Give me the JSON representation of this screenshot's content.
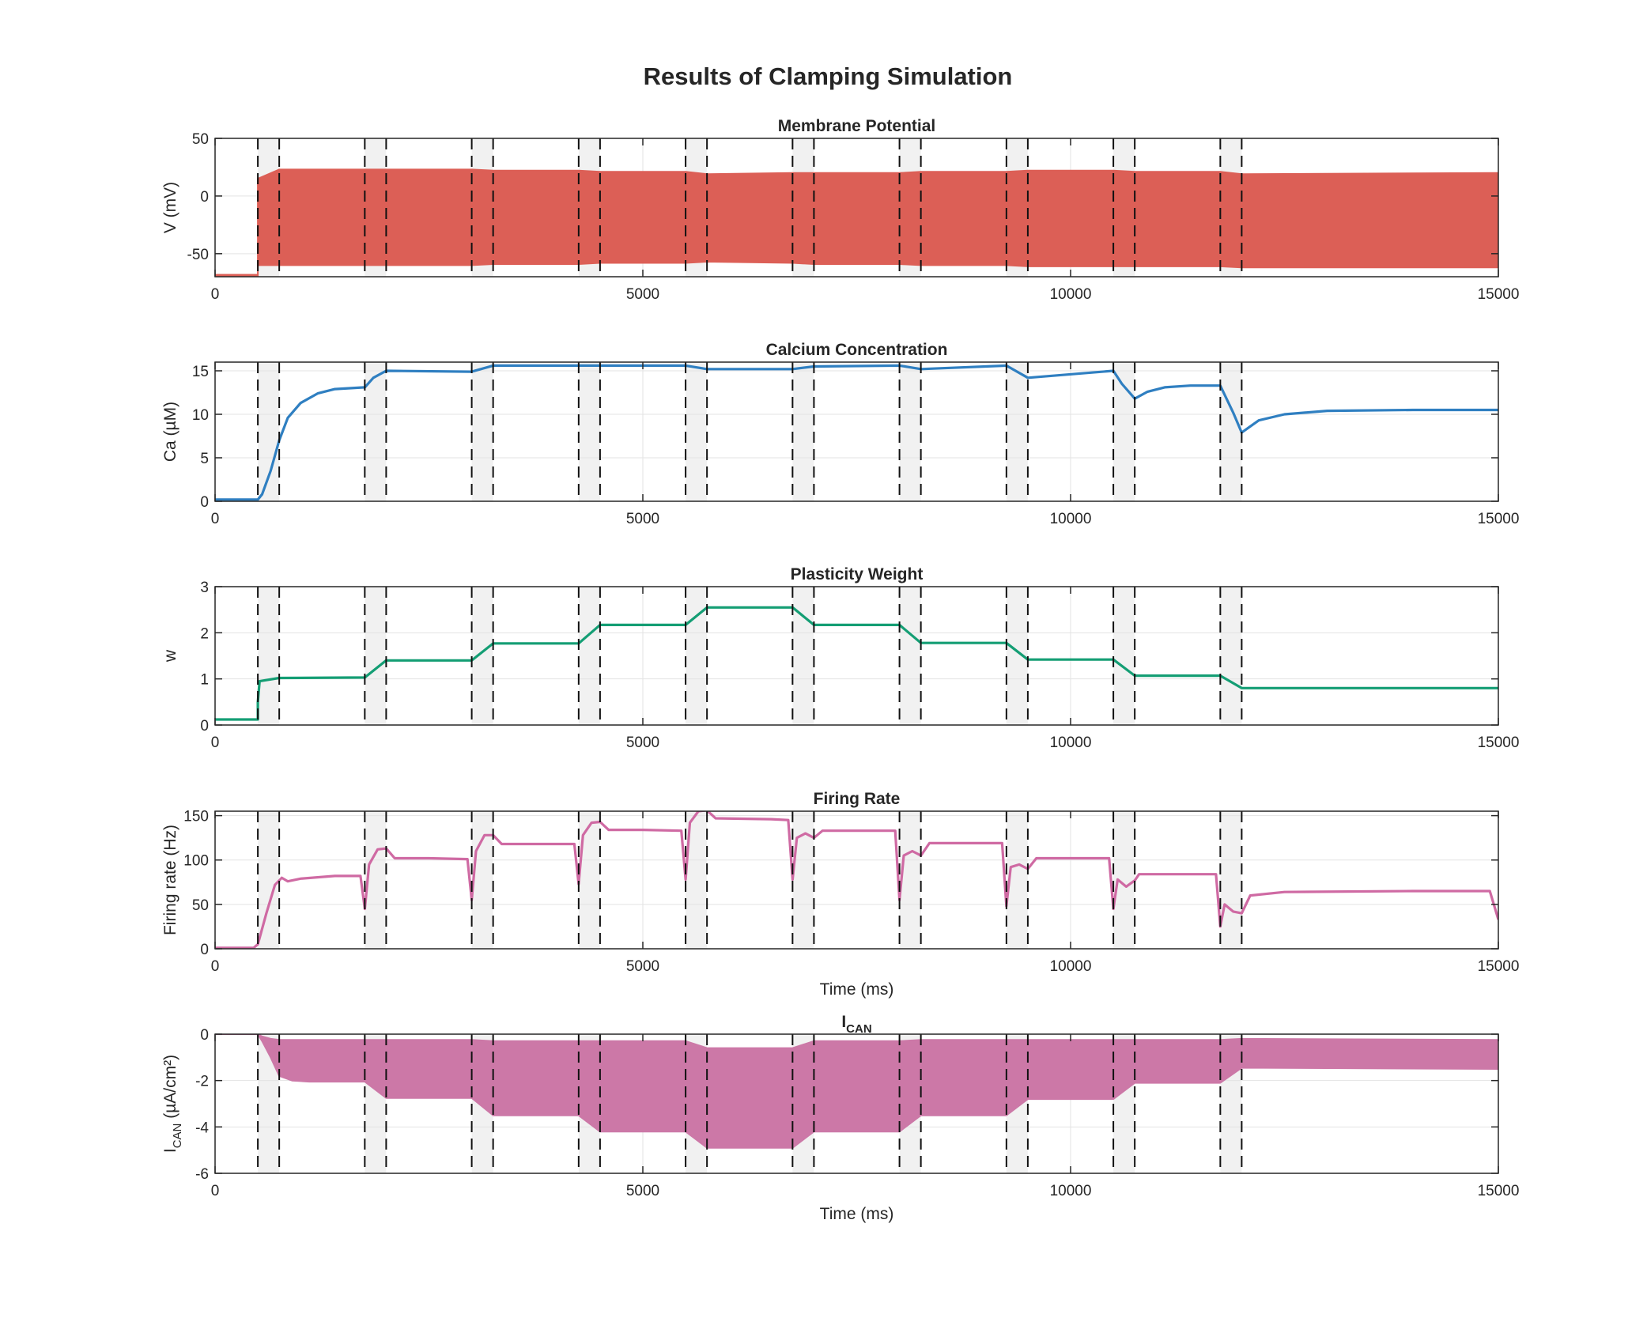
{
  "figure": {
    "title": "Results of Clamping Simulation"
  },
  "colors": {
    "V": "#dc5f56",
    "Ca": "#2f7fc1",
    "w": "#149e74",
    "rate": "#cf6aa3",
    "ican": "#cc78a7",
    "shade": "#ececec",
    "grid": "#e3e3e3",
    "axis": "#262626"
  },
  "chart_data": [
    {
      "type": "area",
      "title": "Membrane Potential",
      "xlabel": "",
      "ylabel": "V (mV)",
      "xlim": [
        0,
        15000
      ],
      "ylim": [
        -70,
        50
      ],
      "xticks": [
        0,
        5000,
        10000,
        15000
      ],
      "yticks": [
        -50,
        0,
        50
      ],
      "grid": true,
      "clamp_lines": [
        500,
        750,
        1750,
        2000,
        3000,
        3250,
        4250,
        4500,
        5500,
        5750,
        6750,
        7000,
        8000,
        8250,
        9250,
        9500,
        10500,
        10750,
        11750,
        12000
      ],
      "series": [
        {
          "x": [
            0,
            500,
            500,
            750,
            1750,
            2000,
            3000,
            3250,
            4250,
            4500,
            5500,
            5750,
            6750,
            7000,
            8000,
            8250,
            9250,
            9500,
            10500,
            10750,
            11750,
            12000,
            15000
          ],
          "upper": [
            -70,
            -70,
            15,
            23,
            23,
            23,
            23,
            22,
            22,
            21,
            21,
            19,
            20,
            20,
            20,
            21,
            21,
            22,
            22,
            21,
            21,
            19,
            20
          ],
          "lower": [
            -70,
            -70,
            -60,
            -60,
            -60,
            -60,
            -60,
            -59,
            -59,
            -58,
            -58,
            -57,
            -58,
            -59,
            -59,
            -60,
            -60,
            -61,
            -61,
            -61,
            -61,
            -62,
            -62
          ]
        }
      ]
    },
    {
      "type": "line",
      "title": "Calcium Concentration",
      "xlabel": "",
      "ylabel": "Ca (µM)",
      "xlim": [
        0,
        15000
      ],
      "ylim": [
        0,
        16
      ],
      "xticks": [
        0,
        5000,
        10000,
        15000
      ],
      "yticks": [
        0,
        5,
        10,
        15
      ],
      "grid": true,
      "clamp_lines": [
        500,
        750,
        1750,
        2000,
        3000,
        3250,
        4250,
        4500,
        5500,
        5750,
        6750,
        7000,
        8000,
        8250,
        9250,
        9500,
        10500,
        10750,
        11750,
        12000
      ],
      "series": [
        {
          "x": [
            0,
            500,
            550,
            650,
            750,
            850,
            1000,
            1200,
            1400,
            1750,
            1850,
            2000,
            3000,
            3250,
            4250,
            4500,
            5500,
            5750,
            6750,
            7000,
            8000,
            8250,
            9250,
            9500,
            10500,
            10600,
            10750,
            10900,
            11100,
            11400,
            11750,
            11900,
            12000,
            12200,
            12500,
            13000,
            14000,
            15000
          ],
          "y": [
            0.2,
            0.2,
            0.8,
            3.5,
            7.0,
            9.6,
            11.3,
            12.4,
            12.9,
            13.1,
            14.2,
            15.0,
            14.9,
            15.6,
            15.6,
            15.6,
            15.6,
            15.2,
            15.2,
            15.5,
            15.6,
            15.2,
            15.6,
            14.2,
            15.0,
            13.5,
            11.8,
            12.6,
            13.1,
            13.3,
            13.3,
            10.2,
            7.9,
            9.3,
            10.0,
            10.4,
            10.5,
            10.5
          ]
        }
      ]
    },
    {
      "type": "line",
      "title": "Plasticity Weight",
      "xlabel": "",
      "ylabel": "w",
      "xlim": [
        0,
        15000
      ],
      "ylim": [
        0,
        3
      ],
      "xticks": [
        0,
        5000,
        10000,
        15000
      ],
      "yticks": [
        0,
        1,
        2,
        3
      ],
      "grid": true,
      "clamp_lines": [
        500,
        750,
        1750,
        2000,
        3000,
        3250,
        4250,
        4500,
        5500,
        5750,
        6750,
        7000,
        8000,
        8250,
        9250,
        9500,
        10500,
        10750,
        11750,
        12000
      ],
      "series": [
        {
          "x": [
            0,
            500,
            500,
            520,
            750,
            1750,
            2000,
            3000,
            3250,
            4250,
            4500,
            5500,
            5750,
            6750,
            7000,
            8000,
            8250,
            9250,
            9500,
            10500,
            10750,
            11750,
            12000,
            15000
          ],
          "y": [
            0.12,
            0.12,
            0.5,
            0.95,
            1.02,
            1.03,
            1.4,
            1.4,
            1.77,
            1.77,
            2.17,
            2.17,
            2.55,
            2.55,
            2.17,
            2.17,
            1.78,
            1.78,
            1.42,
            1.42,
            1.07,
            1.07,
            0.8,
            0.8
          ]
        }
      ]
    },
    {
      "type": "line",
      "title": "Firing Rate",
      "xlabel": "Time (ms)",
      "ylabel": "Firing rate (Hz)",
      "xlim": [
        0,
        15000
      ],
      "ylim": [
        0,
        155
      ],
      "xticks": [
        0,
        5000,
        10000,
        15000
      ],
      "yticks": [
        0,
        50,
        100,
        150
      ],
      "grid": true,
      "clamp_lines": [
        500,
        750,
        1750,
        2000,
        3000,
        3250,
        4250,
        4500,
        5500,
        5750,
        6750,
        7000,
        8000,
        8250,
        9250,
        9500,
        10500,
        10750,
        11750,
        12000
      ],
      "series": [
        {
          "x": [
            0,
            450,
            500,
            600,
            700,
            780,
            850,
            1000,
            1400,
            1700,
            1750,
            1800,
            1900,
            2000,
            2100,
            2500,
            2950,
            3000,
            3050,
            3150,
            3250,
            3350,
            4000,
            4200,
            4250,
            4300,
            4400,
            4500,
            4600,
            5000,
            5450,
            5500,
            5550,
            5650,
            5750,
            5850,
            6500,
            6700,
            6750,
            6800,
            6900,
            7000,
            7100,
            7950,
            8000,
            8050,
            8150,
            8250,
            8350,
            9200,
            9250,
            9300,
            9400,
            9500,
            9600,
            10450,
            10500,
            10550,
            10650,
            10750,
            10800,
            11700,
            11750,
            11800,
            11900,
            12000,
            12100,
            12500,
            14000,
            14900,
            15000
          ],
          "y": [
            1,
            1,
            5,
            40,
            72,
            80,
            76,
            79,
            82,
            82,
            45,
            95,
            112,
            113,
            102,
            102,
            101,
            55,
            110,
            128,
            128,
            118,
            118,
            118,
            73,
            128,
            142,
            143,
            134,
            134,
            133,
            78,
            142,
            155,
            156,
            147,
            146,
            145,
            78,
            125,
            130,
            125,
            133,
            133,
            55,
            105,
            110,
            105,
            119,
            119,
            48,
            92,
            95,
            90,
            102,
            102,
            45,
            78,
            70,
            77,
            84,
            84,
            25,
            50,
            42,
            40,
            60,
            64,
            65,
            65,
            33
          ]
        }
      ]
    },
    {
      "type": "area",
      "title": "I",
      "title_sub": "CAN",
      "xlabel": "Time (ms)",
      "ylabel": "I",
      "ylabel_sub": "CAN",
      "ylabel_tail": " (µA/cm²)",
      "xlim": [
        0,
        15000
      ],
      "ylim": [
        -6,
        0
      ],
      "xticks": [
        0,
        5000,
        10000,
        15000
      ],
      "yticks": [
        -6,
        -4,
        -2,
        0
      ],
      "grid": true,
      "clamp_lines": [
        500,
        750,
        1750,
        2000,
        3000,
        3250,
        4250,
        4500,
        5500,
        5750,
        6750,
        7000,
        8000,
        8250,
        9250,
        9500,
        10500,
        10750,
        11750,
        12000
      ],
      "series": [
        {
          "x": [
            0,
            500,
            550,
            650,
            750,
            900,
            1100,
            1750,
            2000,
            3000,
            3250,
            4250,
            4500,
            5500,
            5750,
            6750,
            7000,
            8000,
            8250,
            9250,
            9500,
            10500,
            10750,
            11750,
            12000,
            15000
          ],
          "upper": [
            0,
            0,
            -0.1,
            -0.2,
            -0.25,
            -0.25,
            -0.25,
            -0.25,
            -0.25,
            -0.25,
            -0.3,
            -0.3,
            -0.3,
            -0.3,
            -0.6,
            -0.6,
            -0.3,
            -0.3,
            -0.25,
            -0.25,
            -0.25,
            -0.25,
            -0.25,
            -0.25,
            -0.2,
            -0.25
          ],
          "lower": [
            0,
            0,
            -0.3,
            -1.0,
            -1.8,
            -2.0,
            -2.05,
            -2.05,
            -2.75,
            -2.75,
            -3.5,
            -3.5,
            -4.2,
            -4.2,
            -4.9,
            -4.9,
            -4.2,
            -4.2,
            -3.5,
            -3.5,
            -2.8,
            -2.8,
            -2.1,
            -2.1,
            -1.45,
            -1.5
          ]
        }
      ]
    }
  ]
}
